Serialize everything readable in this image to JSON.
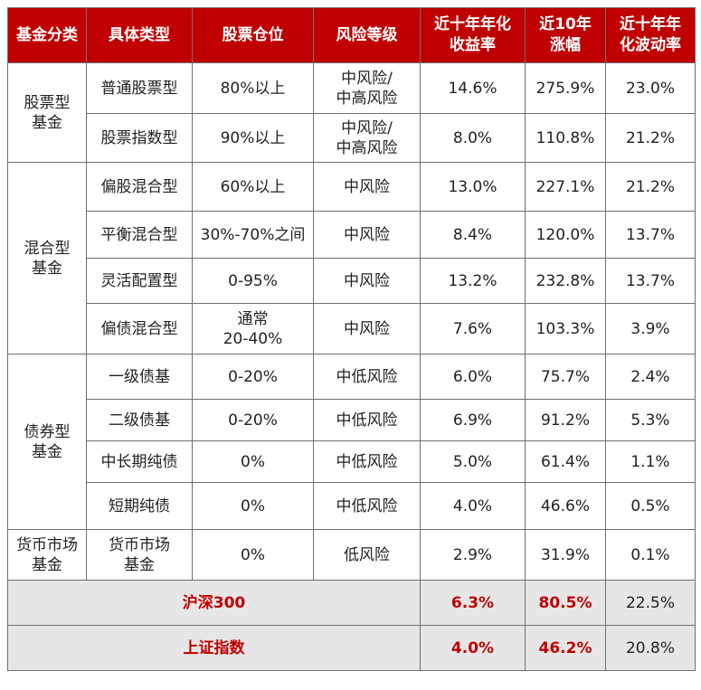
{
  "headers": [
    "基金分类",
    "具体类型",
    "股票仓位",
    "风险等级",
    "近十年年化收益率",
    "近10年涨幅",
    "近十年年化波动率"
  ],
  "groups": [
    {
      "label": "股票型基金",
      "rows": [
        {
          "type": "普通股票型",
          "position": "80%以上",
          "risk": "中风险/中高风险",
          "annual_return": "14.6%",
          "gain_10y": "275.9%",
          "volatility": "23.0%"
        },
        {
          "type": "股票指数型",
          "position": "90%以上",
          "risk": "中风险/中高风险",
          "annual_return": "8.0%",
          "gain_10y": "110.8%",
          "volatility": "21.2%"
        }
      ]
    },
    {
      "label": "混合型基金",
      "rows": [
        {
          "type": "偏股混合型",
          "position": "60%以上",
          "risk": "中风险",
          "annual_return": "13.0%",
          "gain_10y": "227.1%",
          "volatility": "21.2%"
        },
        {
          "type": "平衡混合型",
          "position": "30%-70%之间",
          "risk": "中风险",
          "annual_return": "8.4%",
          "gain_10y": "120.0%",
          "volatility": "13.7%"
        },
        {
          "type": "灵活配置型",
          "position": "0-95%",
          "risk": "中风险",
          "annual_return": "13.2%",
          "gain_10y": "232.8%",
          "volatility": "13.7%"
        },
        {
          "type": "偏债混合型",
          "position": "通常20-40%",
          "risk": "中风险",
          "annual_return": "7.6%",
          "gain_10y": "103.3%",
          "volatility": "3.9%"
        }
      ]
    },
    {
      "label": "债券型基金",
      "rows": [
        {
          "type": "一级债基",
          "position": "0-20%",
          "risk": "中低风险",
          "annual_return": "6.0%",
          "gain_10y": "75.7%",
          "volatility": "2.4%"
        },
        {
          "type": "二级债基",
          "position": "0-20%",
          "risk": "中低风险",
          "annual_return": "6.9%",
          "gain_10y": "91.2%",
          "volatility": "5.3%"
        },
        {
          "type": "中长期纯债",
          "position": "0%",
          "risk": "中低风险",
          "annual_return": "5.0%",
          "gain_10y": "61.4%",
          "volatility": "1.1%"
        },
        {
          "type": "短期纯债",
          "position": "0%",
          "risk": "中低风险",
          "annual_return": "4.0%",
          "gain_10y": "46.6%",
          "volatility": "0.5%"
        }
      ]
    },
    {
      "label": "货币市场基金",
      "rows": [
        {
          "type": "货币市场基金",
          "position": "0%",
          "risk": "低风险",
          "annual_return": "2.9%",
          "gain_10y": "31.9%",
          "volatility": "0.1%"
        }
      ]
    }
  ],
  "benchmarks": [
    {
      "label": "沪深300",
      "annual_return": "6.3%",
      "gain_10y": "80.5%",
      "volatility": "22.5%"
    },
    {
      "label": "上证指数",
      "annual_return": "4.0%",
      "gain_10y": "46.2%",
      "volatility": "20.8%"
    }
  ],
  "colors": {
    "header_bg": "#c00000",
    "bar_red": "#f0455a",
    "bar_blue": "#3f6db5",
    "benchmark_bg": "#e6e6e6",
    "benchmark_text": "#c00000"
  }
}
